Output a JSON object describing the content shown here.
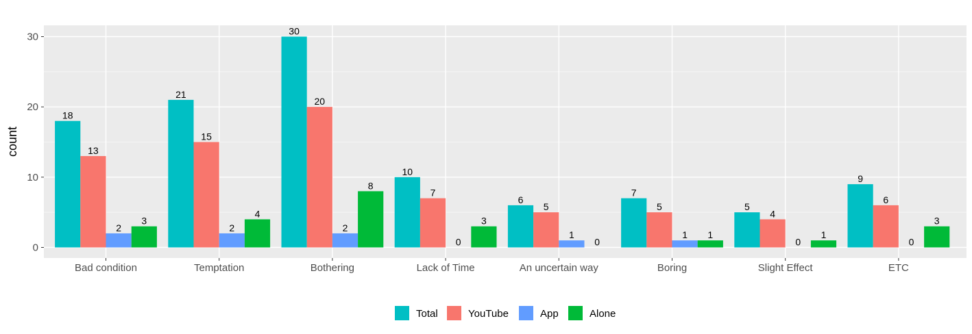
{
  "chart_data": {
    "type": "bar",
    "title": "",
    "xlabel": "",
    "ylabel": "count",
    "ylim": [
      0,
      31.5
    ],
    "yticks": [
      0,
      10,
      20,
      30
    ],
    "grid": true,
    "legend_position": "bottom",
    "categories": [
      "Bad condition",
      "Temptation",
      "Bothering",
      "Lack of Time",
      "An uncertain way",
      "Boring",
      "Slight Effect",
      "ETC"
    ],
    "series": [
      {
        "name": "Total",
        "color": "#00BFC4",
        "values": [
          18,
          21,
          30,
          10,
          6,
          7,
          5,
          9
        ]
      },
      {
        "name": "YouTube",
        "color": "#F8766D",
        "values": [
          13,
          15,
          20,
          7,
          5,
          5,
          4,
          6
        ]
      },
      {
        "name": "App",
        "color": "#619CFF",
        "values": [
          2,
          2,
          2,
          0,
          1,
          1,
          0,
          0
        ]
      },
      {
        "name": "Alone",
        "color": "#00BA38",
        "values": [
          3,
          4,
          8,
          3,
          0,
          1,
          1,
          3
        ]
      }
    ]
  }
}
